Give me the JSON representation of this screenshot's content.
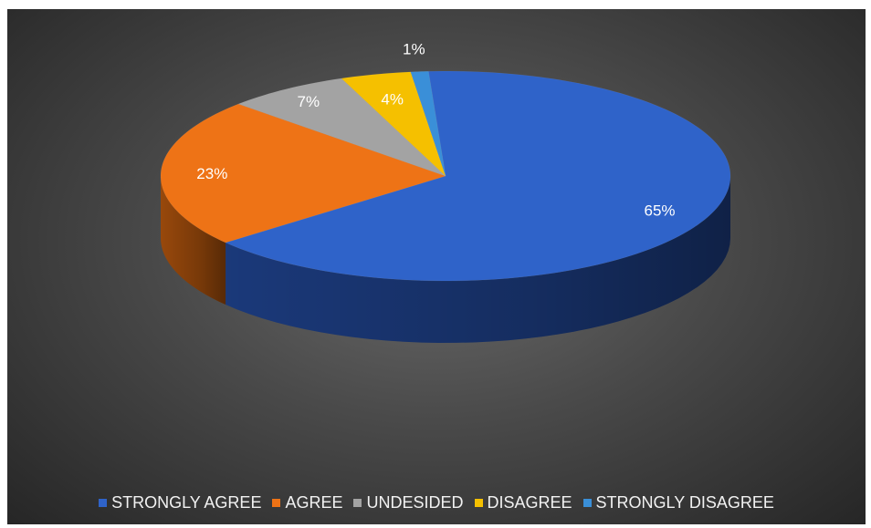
{
  "chart_data": {
    "type": "pie",
    "style": "3d",
    "categories": [
      "STRONGLY AGREE",
      "AGREE",
      "UNDESIDED",
      "DISAGREE",
      "STRONGLY DISAGREE"
    ],
    "values": [
      65,
      23,
      7,
      4,
      1
    ],
    "data_labels": [
      "65%",
      "23%",
      "7%",
      "4%",
      "1%"
    ],
    "colors": [
      "#2f63c9",
      "#ee7316",
      "#a3a3a3",
      "#f5c000",
      "#3a8fd8"
    ],
    "side_colors": [
      "#1c3c80",
      "#a04c0c",
      "#6e6e6e",
      "#a88400",
      "#2466a0"
    ],
    "legend_position": "bottom",
    "title": ""
  }
}
